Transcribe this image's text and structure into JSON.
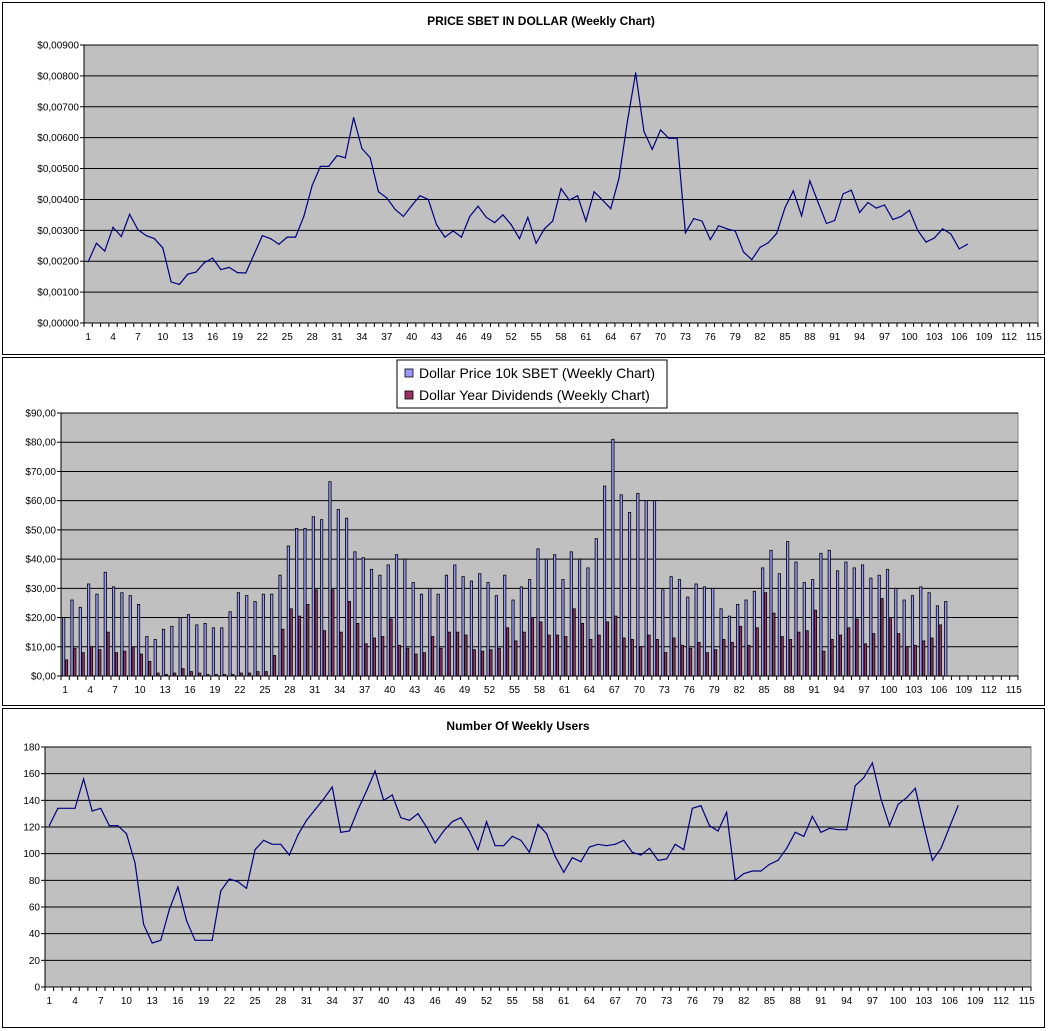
{
  "chart_data": [
    {
      "type": "line",
      "title": "PRICE SBET IN DOLLAR (Weekly Chart)",
      "xlabel": "",
      "ylabel": "",
      "ylim": [
        0,
        0.009
      ],
      "y_ticks": [
        "$0,00000",
        "$0,00100",
        "$0,00200",
        "$0,00300",
        "$0,00400",
        "$0,00500",
        "$0,00600",
        "$0,00700",
        "$0,00800",
        "$0,00900"
      ],
      "x_ticks": [
        "1",
        "4",
        "7",
        "10",
        "13",
        "16",
        "19",
        "22",
        "25",
        "28",
        "31",
        "34",
        "37",
        "40",
        "43",
        "46",
        "49",
        "52",
        "55",
        "58",
        "61",
        "64",
        "67",
        "70",
        "73",
        "76",
        "79",
        "82",
        "85",
        "88",
        "91",
        "94",
        "97",
        "100",
        "103",
        "106",
        "109",
        "112",
        "115"
      ],
      "x_count": 115,
      "grid": "horizontal",
      "plot_background": "#c0c0c0",
      "line_color": "#000080",
      "values": [
        0.00198,
        0.00258,
        0.00233,
        0.0031,
        0.0028,
        0.00352,
        0.00302,
        0.00283,
        0.00273,
        0.00243,
        0.00133,
        0.00125,
        0.00158,
        0.00165,
        0.00195,
        0.0021,
        0.00173,
        0.0018,
        0.00163,
        0.00162,
        0.00222,
        0.00283,
        0.00273,
        0.00255,
        0.00278,
        0.00278,
        0.00345,
        0.00445,
        0.00507,
        0.00507,
        0.00542,
        0.00535,
        0.00665,
        0.00565,
        0.00535,
        0.00425,
        0.00405,
        0.00368,
        0.00345,
        0.0038,
        0.00412,
        0.004,
        0.00318,
        0.00278,
        0.00298,
        0.00278,
        0.00345,
        0.00378,
        0.00342,
        0.00325,
        0.0035,
        0.00318,
        0.00273,
        0.00342,
        0.00258,
        0.00305,
        0.0033,
        0.00435,
        0.00398,
        0.00412,
        0.0033,
        0.00425,
        0.00398,
        0.0037,
        0.0047,
        0.00652,
        0.0081,
        0.0062,
        0.00562,
        0.00625,
        0.00598,
        0.00598,
        0.00292,
        0.00338,
        0.0033,
        0.0027,
        0.00315,
        0.00305,
        0.00298,
        0.0023,
        0.00205,
        0.00245,
        0.0026,
        0.0029,
        0.00373,
        0.00428,
        0.00347,
        0.0046,
        0.0039,
        0.00322,
        0.00332,
        0.00418,
        0.0043,
        0.00358,
        0.0039,
        0.00372,
        0.00382,
        0.00335,
        0.00345,
        0.00365,
        0.003,
        0.00262,
        0.00275,
        0.00305,
        0.00288,
        0.0024,
        0.00255
      ]
    },
    {
      "type": "bar",
      "title": "",
      "xlabel": "",
      "ylabel": "",
      "ylim": [
        0,
        90
      ],
      "y_ticks": [
        "$0,00",
        "$10,00",
        "$20,00",
        "$30,00",
        "$40,00",
        "$50,00",
        "$60,00",
        "$70,00",
        "$80,00",
        "$90,00"
      ],
      "x_ticks": [
        "1",
        "4",
        "7",
        "10",
        "13",
        "16",
        "19",
        "22",
        "25",
        "28",
        "31",
        "34",
        "37",
        "40",
        "43",
        "46",
        "49",
        "52",
        "55",
        "58",
        "61",
        "64",
        "67",
        "70",
        "73",
        "76",
        "79",
        "82",
        "85",
        "88",
        "91",
        "94",
        "97",
        "100",
        "103",
        "106",
        "109",
        "112",
        "115"
      ],
      "x_count": 115,
      "grid": "horizontal",
      "legend_position": "top-center",
      "plot_background": "#c0c0c0",
      "series": [
        {
          "name": "Dollar Price 10k SBET (Weekly Chart)",
          "color": "#9999ff",
          "values": [
            20,
            26,
            23.5,
            31.5,
            28,
            35.5,
            30.5,
            28.5,
            27.5,
            24.5,
            13.5,
            12.5,
            16,
            17,
            20,
            21,
            17.5,
            18,
            16.5,
            16.5,
            22,
            28.5,
            27.5,
            25.5,
            28,
            28,
            34.5,
            44.5,
            50.5,
            50.5,
            54.5,
            53.5,
            66.5,
            57,
            54,
            42.5,
            40.5,
            36.5,
            34.5,
            38,
            41.5,
            40,
            32,
            28,
            30,
            28,
            34.5,
            38,
            34,
            32.5,
            35,
            32,
            27.5,
            34.5,
            26,
            30.5,
            33,
            43.5,
            40,
            41.5,
            33,
            42.5,
            40,
            37,
            47,
            65,
            81,
            62,
            56,
            62.5,
            60,
            60,
            29.5,
            34,
            33,
            27,
            31.5,
            30.5,
            30,
            23,
            20.5,
            24.5,
            26,
            29,
            37,
            43,
            35,
            46,
            39,
            32,
            33,
            42,
            43,
            36,
            39,
            37,
            38,
            33.5,
            34.5,
            36.5,
            30,
            26,
            27.5,
            30.5,
            28.5,
            24,
            25.5
          ]
        },
        {
          "name": "Dollar Year Dividends (Weekly Chart)",
          "color": "#993366",
          "values": [
            5.5,
            9.5,
            8,
            10,
            9,
            15,
            8,
            8.5,
            10,
            7.5,
            5,
            1,
            0.5,
            1,
            2.5,
            1.5,
            1,
            0.5,
            0.5,
            0.5,
            0.5,
            1,
            1,
            1.5,
            1.5,
            7,
            16,
            23,
            20.5,
            24.5,
            29.5,
            15.5,
            29.5,
            15,
            25.5,
            18,
            11,
            13,
            13.5,
            19.5,
            10.5,
            9.5,
            7.5,
            8,
            13.5,
            9.5,
            15,
            15,
            14,
            9,
            8.5,
            9,
            9.5,
            16.5,
            12,
            15,
            20,
            18.5,
            14,
            14,
            13.5,
            23,
            18,
            12.5,
            14,
            18.5,
            20.5,
            13,
            12.5,
            10,
            14,
            12.5,
            8,
            13,
            10.5,
            9.5,
            11.5,
            8,
            9,
            12.5,
            11.5,
            17,
            10.5,
            16.5,
            28.5,
            21.5,
            13.5,
            12.5,
            15,
            15.5,
            22.5,
            8.5,
            12.5,
            14,
            16.5,
            19.5,
            11,
            14.5,
            26.5,
            20,
            14.5,
            10,
            10.5,
            12,
            13,
            17.5
          ]
        }
      ]
    },
    {
      "type": "line",
      "title": "Number Of Weekly Users",
      "xlabel": "",
      "ylabel": "",
      "ylim": [
        0,
        180
      ],
      "y_ticks": [
        "0",
        "20",
        "40",
        "60",
        "80",
        "100",
        "120",
        "140",
        "160",
        "180"
      ],
      "x_ticks": [
        "1",
        "4",
        "7",
        "10",
        "13",
        "16",
        "19",
        "22",
        "25",
        "28",
        "31",
        "34",
        "37",
        "40",
        "43",
        "46",
        "49",
        "52",
        "55",
        "58",
        "61",
        "64",
        "67",
        "70",
        "73",
        "76",
        "79",
        "82",
        "85",
        "88",
        "91",
        "94",
        "97",
        "100",
        "103",
        "106",
        "109",
        "112",
        "115"
      ],
      "x_count": 115,
      "grid": "horizontal",
      "plot_background": "#c0c0c0",
      "line_color": "#000080",
      "values": [
        121,
        134,
        134,
        134,
        156,
        132,
        134,
        121,
        121,
        115,
        93,
        47,
        33,
        35,
        58,
        75,
        50,
        35,
        35,
        35,
        72,
        81,
        79,
        74,
        103,
        110,
        107,
        107,
        99,
        114,
        125,
        133,
        141,
        150,
        116,
        117,
        133,
        147,
        162,
        140,
        144,
        127,
        125,
        130,
        120,
        108,
        117,
        124,
        127,
        117,
        103,
        124,
        106,
        106,
        113,
        110,
        101,
        122,
        115,
        98,
        86,
        97,
        94,
        105,
        107,
        106,
        107,
        110,
        101,
        99,
        104,
        95,
        96,
        107,
        103,
        134,
        136,
        121,
        117,
        131,
        80,
        85,
        87,
        87,
        92,
        95,
        104,
        116,
        113,
        128,
        116,
        119,
        118,
        118,
        151,
        157,
        168,
        141,
        121,
        137,
        142,
        149,
        121,
        95,
        104,
        120,
        136
      ]
    }
  ]
}
